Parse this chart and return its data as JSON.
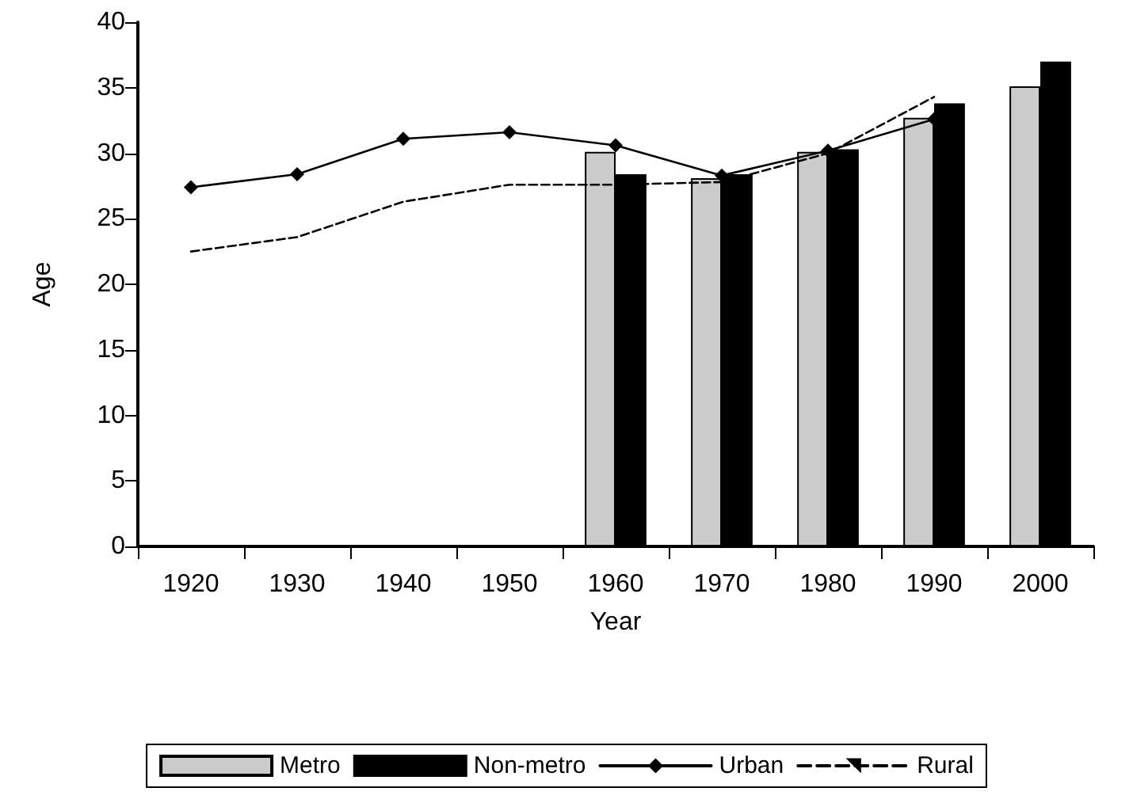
{
  "chart_data": {
    "type": "bar",
    "xlabel": "Year",
    "ylabel": "Age",
    "categories": [
      "1920",
      "1930",
      "1940",
      "1950",
      "1960",
      "1970",
      "1980",
      "1990",
      "2000"
    ],
    "series": [
      {
        "name": "Metro",
        "color": "#cccccc",
        "values": [
          null,
          null,
          null,
          null,
          30.1,
          28.1,
          30.1,
          32.7,
          35.1
        ]
      },
      {
        "name": "Non-metro",
        "color": "#000000",
        "values": [
          null,
          null,
          null,
          null,
          28.4,
          28.4,
          30.3,
          33.8,
          37.0
        ]
      },
      {
        "name": "Urban",
        "type": "line",
        "color": "#000000",
        "marker": "diamond",
        "line_style": "solid",
        "values": [
          27.4,
          28.4,
          31.1,
          31.6,
          30.6,
          28.3,
          30.2,
          32.6,
          null
        ]
      },
      {
        "name": "Rural",
        "type": "line",
        "color": "#000000",
        "marker": "none",
        "line_style": "dashed",
        "values": [
          22.5,
          23.6,
          26.3,
          27.6,
          27.6,
          27.8,
          30.0,
          34.3,
          null
        ]
      }
    ],
    "ylim": [
      0,
      40
    ],
    "yticks": [
      0,
      5,
      10,
      15,
      20,
      25,
      30,
      35,
      40
    ],
    "grid": false,
    "legend": "bottom"
  }
}
